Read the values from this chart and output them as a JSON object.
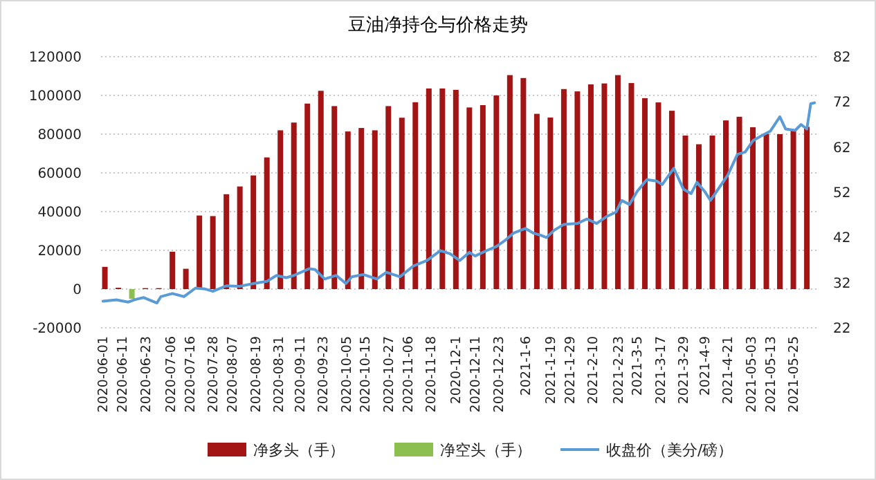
{
  "chart_data": {
    "type": "bar",
    "title": "豆油净持仓与价格走势",
    "xlim": [
      "2020-05-31",
      "2021-06-06"
    ],
    "xticks": [
      {
        "value": "2020-06-01",
        "label": "2020-06-01"
      },
      {
        "value": "2020-06-11",
        "label": "2020-06-11"
      },
      {
        "value": "2020-06-23",
        "label": "2020-06-23"
      },
      {
        "value": "2020-07-06",
        "label": "2020-07-06"
      },
      {
        "value": "2020-07-16",
        "label": "2020-07-16"
      },
      {
        "value": "2020-07-28",
        "label": "2020-07-28"
      },
      {
        "value": "2020-08-07",
        "label": "2020-08-07"
      },
      {
        "value": "2020-08-19",
        "label": "2020-08-19"
      },
      {
        "value": "2020-08-31",
        "label": "2020-08-31"
      },
      {
        "value": "2020-09-11",
        "label": "2020-09-11"
      },
      {
        "value": "2020-09-23",
        "label": "2020-09-23"
      },
      {
        "value": "2020-10-05",
        "label": "2020-10-05"
      },
      {
        "value": "2020-10-15",
        "label": "2020-10-15"
      },
      {
        "value": "2020-10-27",
        "label": "2020-10-27"
      },
      {
        "value": "2020-11-06",
        "label": "2020-11-06"
      },
      {
        "value": "2020-11-18",
        "label": "2020-11-18"
      },
      {
        "value": "2020-12-01",
        "label": "2020-12-1"
      },
      {
        "value": "2020-12-11",
        "label": "2020-12-11"
      },
      {
        "value": "2020-12-23",
        "label": "2020-12-23"
      },
      {
        "value": "2021-01-06",
        "label": "2021-1-6"
      },
      {
        "value": "2021-01-19",
        "label": "2021-1-19"
      },
      {
        "value": "2021-01-29",
        "label": "2021-1-29"
      },
      {
        "value": "2021-02-10",
        "label": "2021-2-10"
      },
      {
        "value": "2021-02-23",
        "label": "2021-2-23"
      },
      {
        "value": "2021-03-05",
        "label": "2021-3-5"
      },
      {
        "value": "2021-03-17",
        "label": "2021-3-17"
      },
      {
        "value": "2021-03-29",
        "label": "2021-3-29"
      },
      {
        "value": "2021-04-09",
        "label": "2021-4-9"
      },
      {
        "value": "2021-04-21",
        "label": "2021-4-21"
      },
      {
        "value": "2021-05-03",
        "label": "2021-05-03"
      },
      {
        "value": "2021-05-13",
        "label": "2021-05-13"
      },
      {
        "value": "2021-05-25",
        "label": "2021-05-25"
      }
    ],
    "x": [
      "2020-06-02",
      "2020-06-09",
      "2020-06-16",
      "2020-06-23",
      "2020-06-30",
      "2020-07-07",
      "2020-07-14",
      "2020-07-21",
      "2020-07-28",
      "2020-08-04",
      "2020-08-11",
      "2020-08-18",
      "2020-08-25",
      "2020-09-01",
      "2020-09-08",
      "2020-09-15",
      "2020-09-22",
      "2020-09-29",
      "2020-10-06",
      "2020-10-13",
      "2020-10-20",
      "2020-10-27",
      "2020-11-03",
      "2020-11-10",
      "2020-11-17",
      "2020-11-24",
      "2020-12-01",
      "2020-12-08",
      "2020-12-15",
      "2020-12-22",
      "2020-12-29",
      "2021-01-05",
      "2021-01-12",
      "2021-01-19",
      "2021-01-26",
      "2021-02-02",
      "2021-02-09",
      "2021-02-16",
      "2021-02-23",
      "2021-03-02",
      "2021-03-09",
      "2021-03-16",
      "2021-03-23",
      "2021-03-30",
      "2021-04-06",
      "2021-04-13",
      "2021-04-20",
      "2021-04-27",
      "2021-05-04",
      "2021-05-11",
      "2021-05-18",
      "2021-05-25",
      "2021-06-01"
    ],
    "ylim": [
      -20000,
      120000
    ],
    "yticks": [
      -20000,
      0,
      20000,
      40000,
      60000,
      80000,
      100000,
      120000
    ],
    "y2lim": [
      22,
      82
    ],
    "y2ticks": [
      22,
      32,
      42,
      52,
      62,
      72,
      82
    ],
    "grid": "y",
    "legend": "bottom",
    "series": [
      {
        "name": "净多头（手）",
        "color": "#a31515",
        "values": [
          11500,
          700,
          null,
          500,
          500,
          19300,
          10500,
          38000,
          37700,
          49000,
          53000,
          58700,
          68000,
          82000,
          86000,
          95800,
          102400,
          94500,
          81400,
          83200,
          82000,
          94500,
          88500,
          96500,
          103600,
          103600,
          102900,
          93800,
          95000,
          100000,
          110500,
          109000,
          90500,
          88600,
          103300,
          102100,
          105700,
          106200,
          110500,
          106400,
          98600,
          96400,
          92100,
          79300,
          74800,
          79300,
          87100,
          89000,
          83600,
          80200,
          80000,
          82100,
          83800
        ]
      },
      {
        "name": "净空头（手）",
        "color": "#8cbf4f",
        "values": [
          null,
          null,
          -5000,
          null,
          null,
          null,
          null,
          null,
          null,
          null,
          null,
          null,
          null,
          null,
          null,
          null,
          null,
          null,
          null,
          null,
          null,
          null,
          null,
          null,
          null,
          null,
          null,
          null,
          null,
          null,
          null,
          null,
          null,
          null,
          null,
          null,
          null,
          null,
          null,
          null,
          null,
          null,
          null,
          null,
          null,
          null,
          null,
          null,
          null,
          null,
          null,
          null,
          null
        ]
      },
      {
        "name": "收盘价（美分/磅）",
        "type": "line",
        "axis": "y2",
        "color": "#5b9bd5",
        "x": [
          "2020-06-01",
          "2020-06-08",
          "2020-06-14",
          "2020-06-18",
          "2020-06-22",
          "2020-06-29",
          "2020-07-01",
          "2020-07-07",
          "2020-07-13",
          "2020-07-19",
          "2020-07-24",
          "2020-07-28",
          "2020-08-04",
          "2020-08-11",
          "2020-08-18",
          "2020-08-25",
          "2020-08-30",
          "2020-09-04",
          "2020-09-08",
          "2020-09-16",
          "2020-09-19",
          "2020-09-24",
          "2020-09-30",
          "2020-10-05",
          "2020-10-08",
          "2020-10-14",
          "2020-10-21",
          "2020-10-26",
          "2020-11-02",
          "2020-11-09",
          "2020-11-16",
          "2020-11-23",
          "2020-11-28",
          "2020-12-03",
          "2020-12-08",
          "2020-12-11",
          "2020-12-17",
          "2020-12-22",
          "2020-12-27",
          "2020-12-31",
          "2021-01-06",
          "2021-01-10",
          "2021-01-14",
          "2021-01-17",
          "2021-01-21",
          "2021-01-26",
          "2021-02-02",
          "2021-02-07",
          "2021-02-12",
          "2021-02-17",
          "2021-02-22",
          "2021-02-25",
          "2021-03-01",
          "2021-03-05",
          "2021-03-10",
          "2021-03-15",
          "2021-03-18",
          "2021-03-24",
          "2021-03-29",
          "2021-04-02",
          "2021-04-05",
          "2021-04-09",
          "2021-04-12",
          "2021-04-17",
          "2021-04-21",
          "2021-04-26",
          "2021-04-30",
          "2021-05-04",
          "2021-05-08",
          "2021-05-13",
          "2021-05-18",
          "2021-05-21",
          "2021-05-26",
          "2021-05-29",
          "2021-06-01",
          "2021-06-03",
          "2021-06-05"
        ],
        "values": [
          27.9,
          28.2,
          27.7,
          28.3,
          28.7,
          27.5,
          28.9,
          29.6,
          28.9,
          30.8,
          30.6,
          30.1,
          31.3,
          31.2,
          31.8,
          32.3,
          33.6,
          33.1,
          33.6,
          35.1,
          34.9,
          32.8,
          33.6,
          31.8,
          33.3,
          33.8,
          32.8,
          34.3,
          33.3,
          35.7,
          36.9,
          39.1,
          38.4,
          36.9,
          38.7,
          37.9,
          39.1,
          40,
          41.5,
          43,
          44,
          43,
          42.5,
          42,
          43.6,
          44.9,
          45.1,
          46.1,
          45.1,
          46.6,
          47.6,
          50.2,
          49.3,
          52.2,
          54.8,
          54.5,
          53.7,
          57.3,
          52.7,
          51.7,
          54.2,
          52.2,
          50.2,
          53.3,
          55.8,
          60.4,
          60.9,
          63.4,
          64.4,
          65.5,
          68.7,
          66,
          65.7,
          67,
          66,
          71.6,
          71.8
        ]
      }
    ]
  }
}
